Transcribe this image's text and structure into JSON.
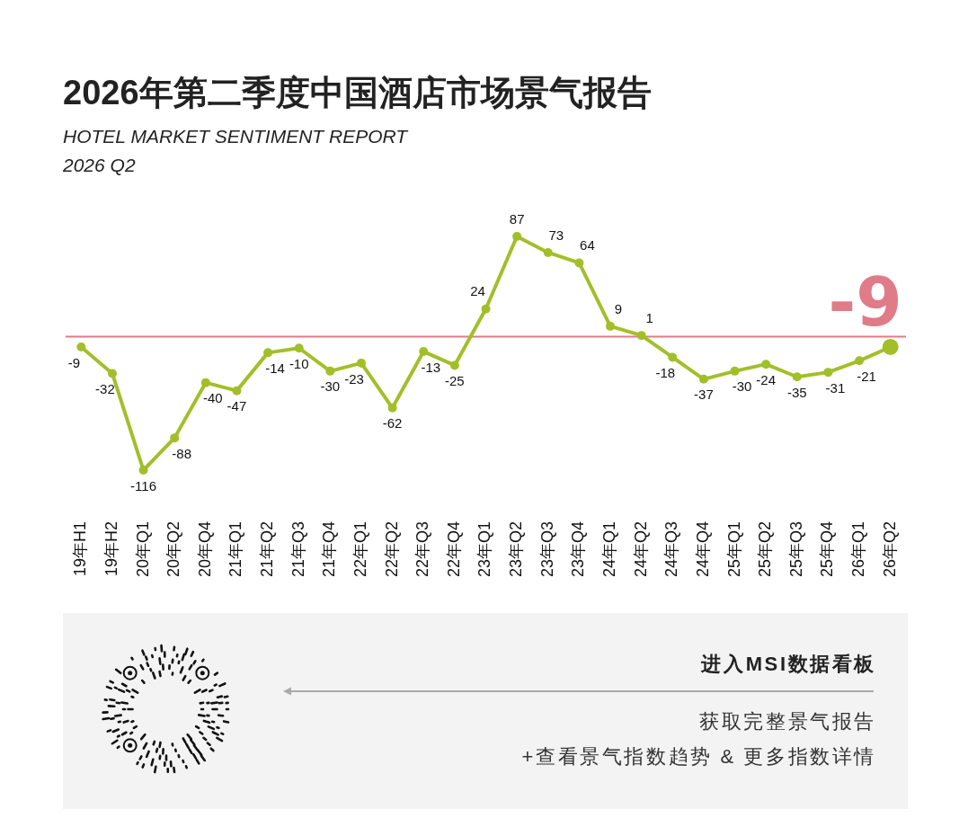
{
  "chart_data": {
    "type": "line",
    "title": "2026年第二季度中国酒店市场景气报告",
    "subtitle": "HOTEL MARKET SENTIMENT REPORT\n2026 Q2",
    "categories": [
      "19年H1",
      "19年H2",
      "20年Q1",
      "20年Q2",
      "20年Q4",
      "21年Q1",
      "21年Q2",
      "21年Q3",
      "21年Q4",
      "22年Q1",
      "22年Q2",
      "22年Q3",
      "22年Q4",
      "23年Q1",
      "23年Q2",
      "23年Q3",
      "23年Q4",
      "24年Q1",
      "24年Q2",
      "24年Q3",
      "24年Q4",
      "25年Q1",
      "25年Q2",
      "25年Q3",
      "25年Q4",
      "26年Q1",
      "26年Q2"
    ],
    "values": [
      -9,
      -32,
      -116,
      -88,
      -40,
      -47,
      -14,
      -10,
      -30,
      -23,
      -62,
      -13,
      -25,
      24,
      87,
      73,
      64,
      9,
      1,
      -18,
      -37,
      -30,
      -24,
      -35,
      -31,
      -21,
      -9
    ],
    "value_labels": [
      "-9",
      "-32",
      "-116",
      "-88",
      "-40",
      "-47",
      "-14",
      "-10",
      "-30",
      "-23",
      "-62",
      "-13",
      "-25",
      "24",
      "87",
      "73",
      "64",
      "9",
      "1",
      "-18",
      "-37",
      "-30",
      "-24",
      "-35",
      "-31",
      "-21",
      null
    ],
    "color": "#a2bf2a",
    "marker": "circle",
    "line_style": "solid",
    "tick_labels": "x",
    "grid": false,
    "legend": false,
    "ref_lines": [
      {
        "axis": "y",
        "value": 0,
        "color": "#e07b88"
      }
    ],
    "annotations": [
      {
        "text": "-9",
        "x": "26年Q2",
        "y": -9
      },
      "进入MSI数据看板",
      "获取完整景气报告",
      "+查看景气指数趋势 & 更多指数详情"
    ]
  }
}
